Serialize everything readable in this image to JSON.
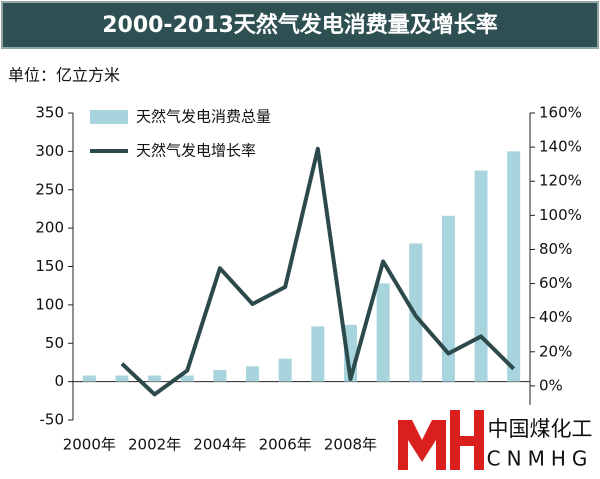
{
  "chart_data": {
    "type": "bar-line",
    "title": "2000-2013天然气发电消费量及增长率",
    "y_axis_label": "单位：亿立方米",
    "categories": [
      "2000年",
      null,
      "2002年",
      null,
      "2004年",
      null,
      "2006年",
      null,
      "2008年",
      null,
      null,
      null,
      null,
      null
    ],
    "series": [
      {
        "name": "天然气发电消费总量",
        "color": "#a7d4dd",
        "type": "bar",
        "values": [
          8,
          8,
          8,
          8,
          15,
          20,
          30,
          72,
          74,
          128,
          180,
          216,
          275,
          300
        ]
      },
      {
        "name": "天然气发电增长率",
        "color": "#2c4a4c",
        "type": "line",
        "axis": "y2",
        "values": [
          null,
          13,
          -5,
          9,
          69,
          48,
          58,
          139,
          4,
          73,
          41,
          19,
          29,
          10
        ]
      }
    ],
    "ylim": [
      -50,
      350
    ],
    "yticks": [
      -50,
      0,
      50,
      100,
      150,
      200,
      250,
      300,
      350
    ],
    "y2lim": [
      -20,
      160
    ],
    "y2ticks": [
      {
        "value": 0,
        "label": "0%"
      },
      {
        "value": 20,
        "label": "20%"
      },
      {
        "value": 40,
        "label": "40%"
      },
      {
        "value": 60,
        "label": "60%"
      },
      {
        "value": 80,
        "label": "80%"
      },
      {
        "value": 100,
        "label": "100%"
      },
      {
        "value": 120,
        "label": "120%"
      },
      {
        "value": 140,
        "label": "140%"
      },
      {
        "value": 160,
        "label": "160%"
      }
    ],
    "watermark": {
      "name": "中国煤化工",
      "code": "CNMHG"
    }
  }
}
